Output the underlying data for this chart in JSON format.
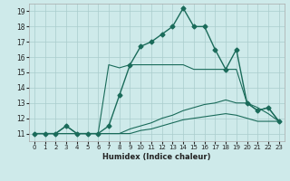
{
  "xlabel": "Humidex (Indice chaleur)",
  "bg_color": "#ceeaea",
  "grid_color": "#aacccc",
  "line_color": "#1a6b5a",
  "xlim": [
    -0.5,
    23.5
  ],
  "ylim": [
    10.5,
    19.5
  ],
  "yticks": [
    11,
    12,
    13,
    14,
    15,
    16,
    17,
    18,
    19
  ],
  "xticks": [
    0,
    1,
    2,
    3,
    4,
    5,
    6,
    7,
    8,
    9,
    10,
    11,
    12,
    13,
    14,
    15,
    16,
    17,
    18,
    19,
    20,
    21,
    22,
    23
  ],
  "lines": [
    {
      "x": [
        0,
        1,
        2,
        3,
        4,
        5,
        6,
        7,
        8,
        9,
        10,
        11,
        12,
        13,
        14,
        15,
        16,
        17,
        18,
        19,
        20,
        21,
        22,
        23
      ],
      "y": [
        11.0,
        11.0,
        11.0,
        11.5,
        11.0,
        11.0,
        11.0,
        11.5,
        13.5,
        15.5,
        16.7,
        17.0,
        17.5,
        18.0,
        19.2,
        18.0,
        18.0,
        16.5,
        15.2,
        16.5,
        13.0,
        12.5,
        12.7,
        11.8
      ],
      "has_marker": true,
      "markersize": 2.5,
      "linewidth": 1.0
    },
    {
      "x": [
        0,
        1,
        2,
        3,
        4,
        5,
        6,
        7,
        8,
        9,
        10,
        11,
        12,
        13,
        14,
        15,
        16,
        17,
        18,
        19,
        20,
        21,
        22,
        23
      ],
      "y": [
        11.0,
        11.0,
        11.0,
        11.5,
        11.0,
        11.0,
        11.0,
        15.5,
        15.3,
        15.5,
        15.5,
        15.5,
        15.5,
        15.5,
        15.5,
        15.2,
        15.2,
        15.2,
        15.2,
        15.2,
        13.0,
        12.5,
        12.7,
        11.8
      ],
      "has_marker": false,
      "linewidth": 0.8
    },
    {
      "x": [
        0,
        1,
        2,
        3,
        4,
        5,
        6,
        7,
        8,
        9,
        10,
        11,
        12,
        13,
        14,
        15,
        16,
        17,
        18,
        19,
        20,
        21,
        22,
        23
      ],
      "y": [
        11.0,
        11.0,
        11.0,
        11.0,
        11.0,
        11.0,
        11.0,
        11.0,
        11.0,
        11.3,
        11.5,
        11.7,
        12.0,
        12.2,
        12.5,
        12.7,
        12.9,
        13.0,
        13.2,
        13.0,
        13.0,
        12.7,
        12.3,
        11.8
      ],
      "has_marker": false,
      "linewidth": 0.8
    },
    {
      "x": [
        0,
        1,
        2,
        3,
        4,
        5,
        6,
        7,
        8,
        9,
        10,
        11,
        12,
        13,
        14,
        15,
        16,
        17,
        18,
        19,
        20,
        21,
        22,
        23
      ],
      "y": [
        11.0,
        11.0,
        11.0,
        11.0,
        11.0,
        11.0,
        11.0,
        11.0,
        11.0,
        11.0,
        11.2,
        11.3,
        11.5,
        11.7,
        11.9,
        12.0,
        12.1,
        12.2,
        12.3,
        12.2,
        12.0,
        11.8,
        11.8,
        11.8
      ],
      "has_marker": false,
      "linewidth": 0.8
    }
  ]
}
